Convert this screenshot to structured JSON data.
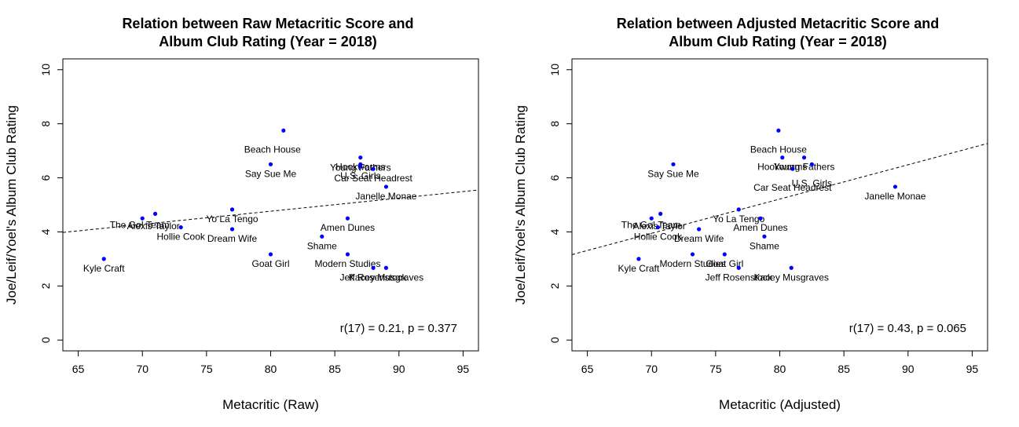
{
  "chart_data": [
    {
      "type": "scatter",
      "title_lines": [
        "Relation between Raw Metacritic Score and",
        "Album Club Rating (Year = 2018)"
      ],
      "xlabel": "Metacritic (Raw)",
      "ylabel": "Joe/Leif/Yoel's Album Club Rating",
      "xlim": [
        63.8,
        96.2
      ],
      "ylim": [
        -0.4,
        10.4
      ],
      "xticks": [
        65,
        70,
        75,
        80,
        85,
        90,
        95
      ],
      "yticks": [
        0,
        2,
        4,
        6,
        8,
        10
      ],
      "point_color": "#0000ff",
      "trendline": {
        "style": "dashed",
        "x": [
          63.8,
          96.2
        ],
        "y": [
          3.98,
          5.55
        ]
      },
      "annotation": "r(17) = 0.21, p = 0.377",
      "points": [
        {
          "label": "Kyle Craft",
          "x": 67,
          "y": 3.0
        },
        {
          "label": "Alexis Taylor",
          "x": 70,
          "y": 4.5
        },
        {
          "label": "The Go! Team",
          "x": 71,
          "y": 4.67
        },
        {
          "label": "Hollie Cook",
          "x": 73,
          "y": 4.17
        },
        {
          "label": "Yo La Tengo",
          "x": 77,
          "y": 4.83
        },
        {
          "label": "Dream Wife",
          "x": 77,
          "y": 4.1
        },
        {
          "label": "Beach House",
          "x": 81,
          "y": 7.75
        },
        {
          "label": "Say Sue Me",
          "x": 80,
          "y": 6.5
        },
        {
          "label": "Goat Girl",
          "x": 80,
          "y": 3.17
        },
        {
          "label": "Amen Dunes",
          "x": 86,
          "y": 4.5
        },
        {
          "label": "Shame",
          "x": 84,
          "y": 3.83
        },
        {
          "label": "Modern Studies",
          "x": 86,
          "y": 3.17
        },
        {
          "label": "Hookworms",
          "x": 87,
          "y": 6.75
        },
        {
          "label": "Young Fathers",
          "x": 87,
          "y": 6.5
        },
        {
          "label": "Car Seat Headrest",
          "x": 88,
          "y": 6.33
        },
        {
          "label": "U.S. Girls",
          "x": 87,
          "y": 6.42
        },
        {
          "label": "Janelle Monae",
          "x": 89,
          "y": 5.67
        },
        {
          "label": "Jeff Rosenstock",
          "x": 88,
          "y": 2.67
        },
        {
          "label": "Kacey Musgraves",
          "x": 89,
          "y": 2.67
        }
      ]
    },
    {
      "type": "scatter",
      "title_lines": [
        "Relation between Adjusted Metacritic Score and",
        "Album Club Rating (Year = 2018)"
      ],
      "xlabel": "Metacritic (Adjusted)",
      "ylabel": "Joe/Leif/Yoel's Album Club Rating",
      "xlim": [
        63.8,
        96.2
      ],
      "ylim": [
        -0.4,
        10.4
      ],
      "xticks": [
        65,
        70,
        75,
        80,
        85,
        90,
        95
      ],
      "yticks": [
        0,
        2,
        4,
        6,
        8,
        10
      ],
      "point_color": "#0000ff",
      "trendline": {
        "style": "dashed",
        "x": [
          63.8,
          96.2
        ],
        "y": [
          3.16,
          7.27
        ]
      },
      "annotation": "r(17) = 0.43, p = 0.065",
      "points": [
        {
          "label": "Kyle Craft",
          "x": 69,
          "y": 3.0
        },
        {
          "label": "Alexis Taylor",
          "x": 70,
          "y": 4.5
        },
        {
          "label": "The Go! Team",
          "x": 70.7,
          "y": 4.67
        },
        {
          "label": "Hollie Cook",
          "x": 70.5,
          "y": 4.17
        },
        {
          "label": "Dream Wife",
          "x": 73.7,
          "y": 4.1
        },
        {
          "label": "Yo La Tengo",
          "x": 76.8,
          "y": 4.83
        },
        {
          "label": "Say Sue Me",
          "x": 71.7,
          "y": 6.5
        },
        {
          "label": "Modern Studies",
          "x": 73.2,
          "y": 3.17
        },
        {
          "label": "Goat Girl",
          "x": 75.7,
          "y": 3.17
        },
        {
          "label": "Amen Dunes",
          "x": 78.5,
          "y": 4.5
        },
        {
          "label": "Shame",
          "x": 78.8,
          "y": 3.83
        },
        {
          "label": "Jeff Rosenstock",
          "x": 76.8,
          "y": 2.67
        },
        {
          "label": "Kacey Musgraves",
          "x": 80.9,
          "y": 2.67
        },
        {
          "label": "Beach House",
          "x": 79.9,
          "y": 7.75
        },
        {
          "label": "Hookworms",
          "x": 80.2,
          "y": 6.75
        },
        {
          "label": "Young Fathers",
          "x": 81.9,
          "y": 6.75
        },
        {
          "label": "Car Seat Headrest",
          "x": 81,
          "y": 6.33
        },
        {
          "label": "U.S. Girls",
          "x": 82.5,
          "y": 6.5
        },
        {
          "label": "Janelle Monae",
          "x": 89,
          "y": 5.67
        }
      ]
    }
  ]
}
